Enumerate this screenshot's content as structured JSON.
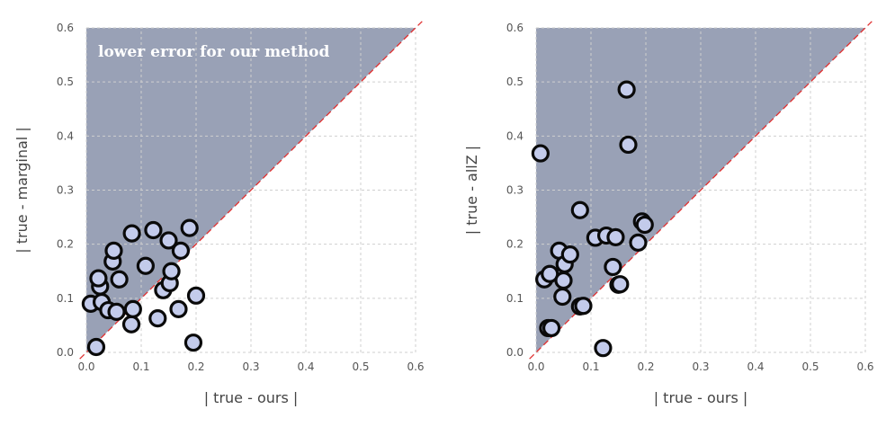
{
  "chart_data": [
    {
      "type": "scatter",
      "xlabel": "| true - ours |",
      "ylabel": "| true - marginal |",
      "xlim": [
        0,
        0.6
      ],
      "ylim": [
        0,
        0.6
      ],
      "ticks": [
        "0.0",
        "0.1",
        "0.2",
        "0.3",
        "0.4",
        "0.5",
        "0.6"
      ],
      "tick_values": [
        0,
        0.1,
        0.2,
        0.3,
        0.4,
        0.5,
        0.6
      ],
      "grid": true,
      "diagonal": "y = x",
      "shaded_region": "above diagonal (y > x)",
      "annotation": "lower error for our method",
      "colors": {
        "shade": "#99a1b6",
        "marker_fill": "#c3cbeb",
        "marker_edge": "#0a0a0a",
        "diagonal": "#e03030"
      },
      "points": [
        {
          "x": 0.018,
          "y": 0.01
        },
        {
          "x": 0.008,
          "y": 0.09
        },
        {
          "x": 0.028,
          "y": 0.093
        },
        {
          "x": 0.04,
          "y": 0.078
        },
        {
          "x": 0.055,
          "y": 0.075
        },
        {
          "x": 0.025,
          "y": 0.122
        },
        {
          "x": 0.022,
          "y": 0.137
        },
        {
          "x": 0.06,
          "y": 0.135
        },
        {
          "x": 0.048,
          "y": 0.168
        },
        {
          "x": 0.05,
          "y": 0.188
        },
        {
          "x": 0.083,
          "y": 0.22
        },
        {
          "x": 0.082,
          "y": 0.052
        },
        {
          "x": 0.085,
          "y": 0.08
        },
        {
          "x": 0.108,
          "y": 0.16
        },
        {
          "x": 0.122,
          "y": 0.226
        },
        {
          "x": 0.13,
          "y": 0.063
        },
        {
          "x": 0.14,
          "y": 0.115
        },
        {
          "x": 0.15,
          "y": 0.207
        },
        {
          "x": 0.152,
          "y": 0.128
        },
        {
          "x": 0.155,
          "y": 0.15
        },
        {
          "x": 0.168,
          "y": 0.08
        },
        {
          "x": 0.172,
          "y": 0.188
        },
        {
          "x": 0.188,
          "y": 0.23
        },
        {
          "x": 0.195,
          "y": 0.018
        },
        {
          "x": 0.2,
          "y": 0.105
        }
      ]
    },
    {
      "type": "scatter",
      "xlabel": "| true - ours |",
      "ylabel": "| true - allZ |",
      "xlim": [
        0,
        0.6
      ],
      "ylim": [
        0,
        0.6
      ],
      "ticks": [
        "0.0",
        "0.1",
        "0.2",
        "0.3",
        "0.4",
        "0.5",
        "0.6"
      ],
      "tick_values": [
        0,
        0.1,
        0.2,
        0.3,
        0.4,
        0.5,
        0.6
      ],
      "grid": true,
      "diagonal": "y = x",
      "shaded_region": "above diagonal (y > x)",
      "annotation": "",
      "colors": {
        "shade": "#99a1b6",
        "marker_fill": "#c3cbeb",
        "marker_edge": "#0a0a0a",
        "diagonal": "#e03030"
      },
      "points": [
        {
          "x": 0.008,
          "y": 0.368
        },
        {
          "x": 0.015,
          "y": 0.135
        },
        {
          "x": 0.022,
          "y": 0.045
        },
        {
          "x": 0.028,
          "y": 0.045
        },
        {
          "x": 0.025,
          "y": 0.145
        },
        {
          "x": 0.042,
          "y": 0.188
        },
        {
          "x": 0.048,
          "y": 0.103
        },
        {
          "x": 0.05,
          "y": 0.133
        },
        {
          "x": 0.052,
          "y": 0.163
        },
        {
          "x": 0.062,
          "y": 0.181
        },
        {
          "x": 0.08,
          "y": 0.263
        },
        {
          "x": 0.08,
          "y": 0.085
        },
        {
          "x": 0.086,
          "y": 0.086
        },
        {
          "x": 0.108,
          "y": 0.212
        },
        {
          "x": 0.122,
          "y": 0.008
        },
        {
          "x": 0.128,
          "y": 0.216
        },
        {
          "x": 0.14,
          "y": 0.158
        },
        {
          "x": 0.145,
          "y": 0.213
        },
        {
          "x": 0.15,
          "y": 0.125
        },
        {
          "x": 0.153,
          "y": 0.126
        },
        {
          "x": 0.165,
          "y": 0.486
        },
        {
          "x": 0.168,
          "y": 0.384
        },
        {
          "x": 0.186,
          "y": 0.203
        },
        {
          "x": 0.193,
          "y": 0.242
        },
        {
          "x": 0.198,
          "y": 0.236
        }
      ]
    }
  ]
}
